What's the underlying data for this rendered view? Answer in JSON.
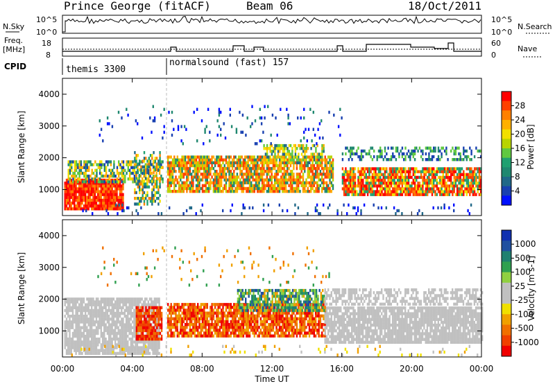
{
  "title": {
    "station": "Prince George (fitACF)",
    "beam": "Beam 06",
    "date": "18/Oct/2011"
  },
  "top_panel": {
    "left_label": "N.Sky",
    "left_ticks": [
      "10^5",
      "10^0"
    ],
    "right_ticks": [
      "10^5",
      "10^0"
    ],
    "right_label": "N.Search"
  },
  "freq_panel": {
    "left_label_1": "Freq.",
    "left_label_2": "[MHz]",
    "left_ticks": [
      "18",
      "8"
    ],
    "right_ticks": [
      "60",
      "0"
    ],
    "right_label": "Nave"
  },
  "cpid": {
    "label": "CPID",
    "modes": [
      {
        "name": "themis 3300",
        "start": 0
      },
      {
        "name": "normalsound (fast) 157",
        "start": 6
      }
    ]
  },
  "chart_data": [
    {
      "type": "heatmap",
      "quantity": "Power",
      "ylabel": "Slant Range [km]",
      "yticks": [
        1000,
        2000,
        3000,
        4000
      ],
      "ylim": [
        180,
        4500
      ],
      "colorbar_label": "Power [dB]",
      "colorbar_ticks": [
        "28",
        "24",
        "20",
        "16",
        "12",
        "8",
        "4"
      ],
      "colorbar_colors": [
        "#ff0000",
        "#ff4000",
        "#ff8000",
        "#ffb000",
        "#f2e000",
        "#b8d400",
        "#60c840",
        "#20a070",
        "#208870",
        "#206888",
        "#1840b0",
        "#0010ff"
      ]
    },
    {
      "type": "heatmap",
      "quantity": "Velocity",
      "ylabel": "Slant Range [km]",
      "yticks": [
        1000,
        2000,
        3000,
        4000
      ],
      "ylim": [
        180,
        4500
      ],
      "colorbar_label": "Velocity [m s-1]",
      "colorbar_ticks": [
        "1000",
        "500",
        "100",
        "25",
        "-25",
        "-100",
        "-500",
        "-1000"
      ],
      "colorbar_colors": [
        "#1030b0",
        "#2050a0",
        "#208070",
        "#30a050",
        "#90d040",
        "#c0c0c0",
        "#c0c0c0",
        "#f0e000",
        "#f0a000",
        "#f07000",
        "#f04000",
        "#f00000"
      ]
    }
  ],
  "xaxis": {
    "label": "Time UT",
    "ticks": [
      "00:00",
      "04:00",
      "08:00",
      "12:00",
      "16:00",
      "20:00",
      "00:00"
    ],
    "range_hours": [
      0,
      24
    ]
  }
}
